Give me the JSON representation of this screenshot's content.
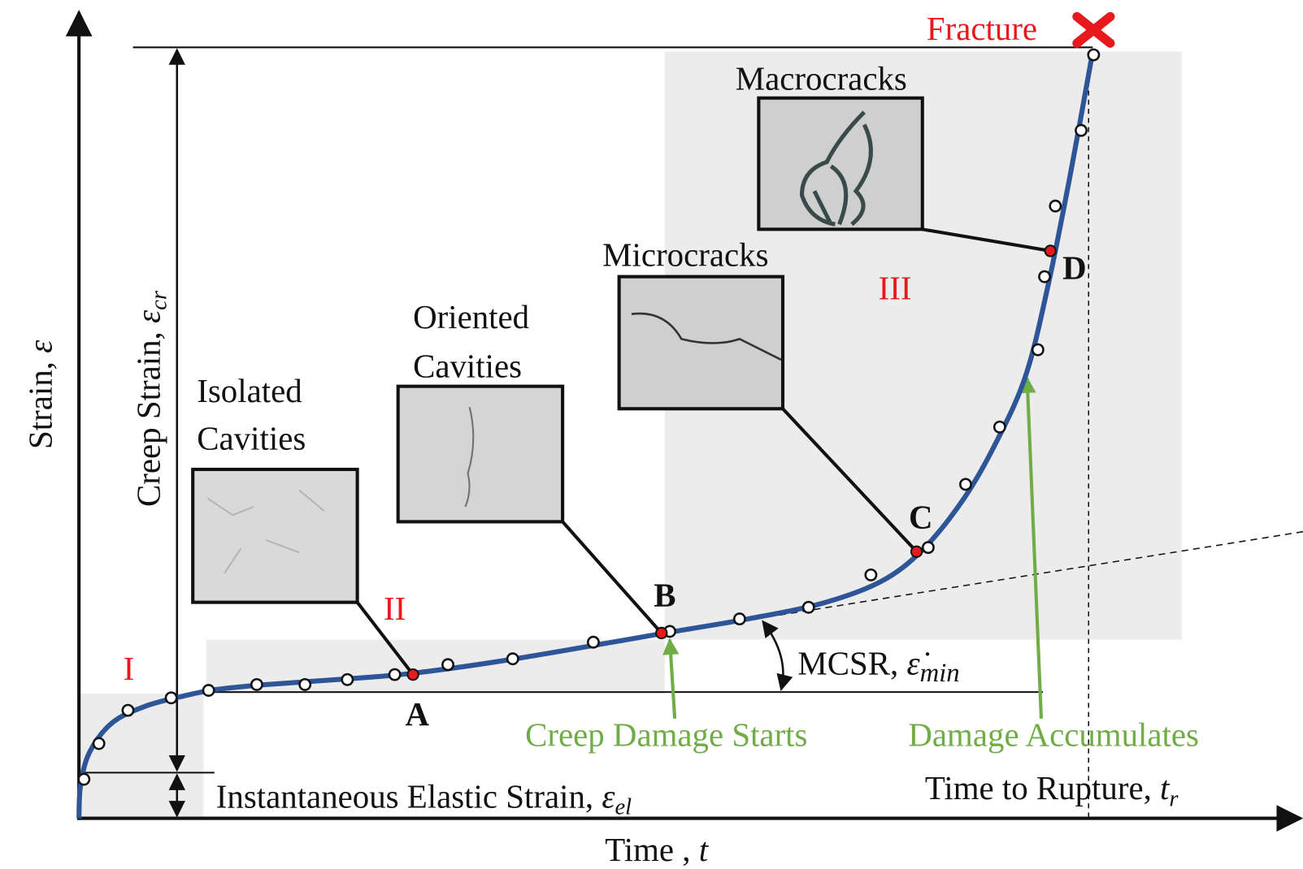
{
  "axes": {
    "y_label": {
      "text": "Strain, ",
      "symbol": "ε"
    },
    "x_label": {
      "text": "Time , ",
      "symbol": "t"
    }
  },
  "annotations": {
    "creep_strain": {
      "text": "Creep Strain, ",
      "symbol": "ε",
      "sub": "cr"
    },
    "elastic_strain": {
      "text": "Instantaneous Elastic Strain, ",
      "symbol": "ε",
      "sub": "el"
    },
    "mcsr": {
      "text": "MCSR, ",
      "symbol": "ε̇",
      "sub": "min"
    },
    "rupture_time": {
      "text": "Time to Rupture, ",
      "symbol": "t",
      "sub": "r"
    },
    "fracture": "Fracture",
    "damage_starts": "Creep Damage Starts",
    "damage_accumulates": "Damage Accumulates"
  },
  "stages": [
    "I",
    "II",
    "III"
  ],
  "points": [
    "A",
    "B",
    "C",
    "D"
  ],
  "micrographs": [
    {
      "label": [
        "Isolated",
        "Cavities"
      ]
    },
    {
      "label": [
        "Oriented",
        "Cavities"
      ]
    },
    {
      "label": [
        "Microcracks"
      ]
    },
    {
      "label": [
        "Macrocracks"
      ]
    }
  ]
}
